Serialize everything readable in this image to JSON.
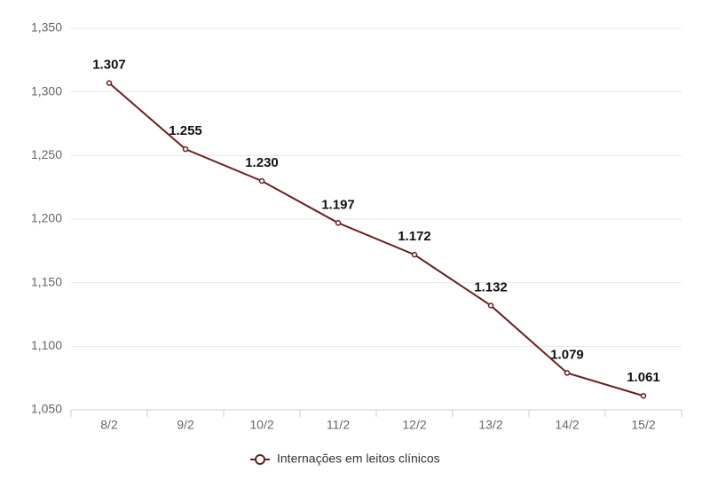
{
  "chart_data": {
    "type": "line",
    "categories": [
      "8/2",
      "9/2",
      "10/2",
      "11/2",
      "12/2",
      "13/2",
      "14/2",
      "15/2"
    ],
    "series": [
      {
        "name": "Internações em leitos clínicos",
        "color": "#6b1f1f",
        "values": [
          1307,
          1255,
          1230,
          1197,
          1172,
          1132,
          1079,
          1061
        ],
        "value_labels": [
          "1.307",
          "1.255",
          "1.230",
          "1.197",
          "1.172",
          "1.132",
          "1.079",
          "1.061"
        ]
      }
    ],
    "ylim": [
      1050,
      1350
    ],
    "yticks": [
      {
        "value": 1050,
        "label": "1,050"
      },
      {
        "value": 1100,
        "label": "1,100"
      },
      {
        "value": 1150,
        "label": "1,150"
      },
      {
        "value": 1200,
        "label": "1,200"
      },
      {
        "value": 1250,
        "label": "1,250"
      },
      {
        "value": 1300,
        "label": "1,300"
      },
      {
        "value": 1350,
        "label": "1,350"
      }
    ],
    "grid": true
  }
}
